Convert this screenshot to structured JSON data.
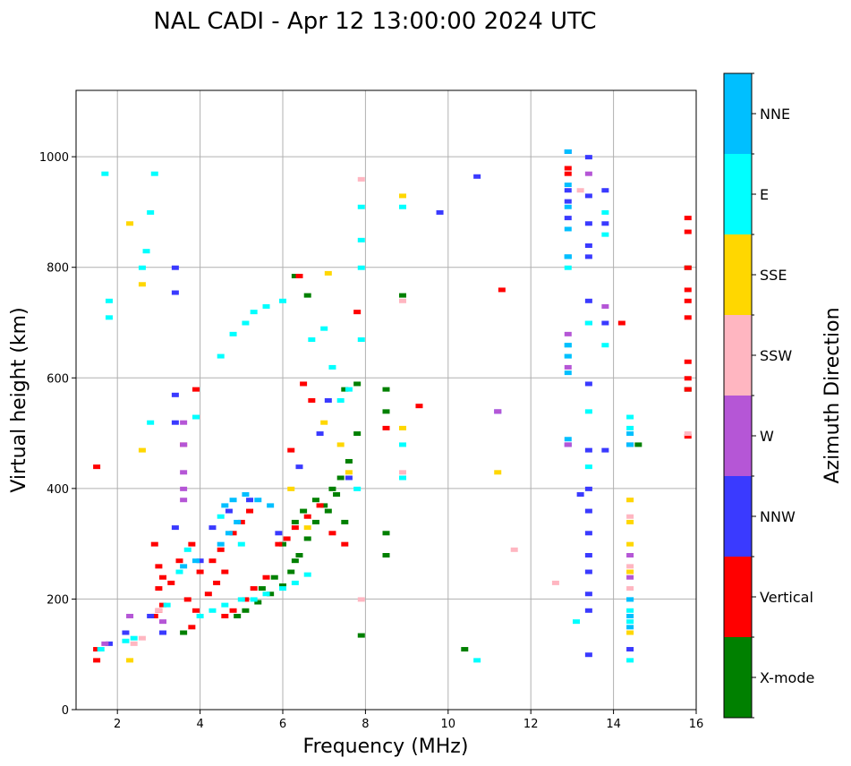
{
  "chart_data": {
    "type": "scatter",
    "title": "NAL CADI - Apr 12 13:00:00 2024 UTC",
    "xlabel": "Frequency (MHz)",
    "ylabel": "Virtual height (km)",
    "xlim": [
      1.0,
      16.0
    ],
    "ylim": [
      0,
      1120
    ],
    "xticks": [
      2,
      4,
      6,
      8,
      10,
      12,
      14,
      16
    ],
    "yticks": [
      0,
      200,
      400,
      600,
      800,
      1000
    ],
    "grid": true,
    "colorbar": {
      "label": "Azimuth Direction",
      "categories": [
        {
          "name": "X-mode",
          "color": "#008000"
        },
        {
          "name": "Vertical",
          "color": "#ff0000"
        },
        {
          "name": "NNW",
          "color": "#3a3aff"
        },
        {
          "name": "W",
          "color": "#b556d6"
        },
        {
          "name": "SSW",
          "color": "#ffb6c1"
        },
        {
          "name": "SSE",
          "color": "#ffd700"
        },
        {
          "name": "E",
          "color": "#00ffff"
        },
        {
          "name": "NNE",
          "color": "#00bfff"
        }
      ]
    },
    "series": [
      {
        "name": "X-mode",
        "points": [
          [
            4.9,
            170
          ],
          [
            5.1,
            180
          ],
          [
            5.4,
            195
          ],
          [
            5.7,
            210
          ],
          [
            6.0,
            225
          ],
          [
            6.2,
            250
          ],
          [
            6.4,
            280
          ],
          [
            6.6,
            310
          ],
          [
            6.8,
            340
          ],
          [
            7.0,
            370
          ],
          [
            7.2,
            400
          ],
          [
            7.4,
            420
          ],
          [
            7.6,
            450
          ],
          [
            7.8,
            500
          ],
          [
            6.3,
            340
          ],
          [
            6.5,
            360
          ],
          [
            6.8,
            380
          ],
          [
            7.1,
            360
          ],
          [
            7.3,
            390
          ],
          [
            7.5,
            340
          ],
          [
            6.0,
            300
          ],
          [
            6.3,
            270
          ],
          [
            5.8,
            240
          ],
          [
            5.5,
            220
          ],
          [
            7.8,
            590
          ],
          [
            7.5,
            580
          ],
          [
            6.6,
            750
          ],
          [
            6.3,
            785
          ],
          [
            8.5,
            580
          ],
          [
            8.5,
            540
          ],
          [
            8.5,
            320
          ],
          [
            8.5,
            280
          ],
          [
            8.9,
            750
          ],
          [
            10.4,
            110
          ],
          [
            14.6,
            480
          ],
          [
            15.8,
            800
          ],
          [
            15.8,
            580
          ],
          [
            7.9,
            135
          ],
          [
            3.6,
            140
          ]
        ]
      },
      {
        "name": "Vertical",
        "points": [
          [
            1.5,
            110
          ],
          [
            1.5,
            90
          ],
          [
            1.5,
            440
          ],
          [
            2.9,
            300
          ],
          [
            3.0,
            260
          ],
          [
            3.1,
            240
          ],
          [
            3.0,
            220
          ],
          [
            3.1,
            190
          ],
          [
            3.3,
            230
          ],
          [
            3.5,
            270
          ],
          [
            3.8,
            300
          ],
          [
            4.0,
            250
          ],
          [
            4.3,
            270
          ],
          [
            4.5,
            290
          ],
          [
            4.8,
            320
          ],
          [
            5.0,
            340
          ],
          [
            5.2,
            360
          ],
          [
            4.2,
            210
          ],
          [
            4.4,
            230
          ],
          [
            4.6,
            250
          ],
          [
            3.7,
            200
          ],
          [
            3.9,
            180
          ],
          [
            3.8,
            150
          ],
          [
            4.6,
            170
          ],
          [
            4.8,
            180
          ],
          [
            5.1,
            200
          ],
          [
            5.3,
            220
          ],
          [
            5.6,
            240
          ],
          [
            5.9,
            300
          ],
          [
            6.1,
            310
          ],
          [
            6.3,
            330
          ],
          [
            6.6,
            350
          ],
          [
            6.9,
            370
          ],
          [
            7.2,
            320
          ],
          [
            7.5,
            300
          ],
          [
            6.2,
            470
          ],
          [
            6.7,
            560
          ],
          [
            6.5,
            590
          ],
          [
            7.8,
            720
          ],
          [
            8.5,
            510
          ],
          [
            9.3,
            550
          ],
          [
            11.3,
            760
          ],
          [
            12.9,
            980
          ],
          [
            12.9,
            970
          ],
          [
            14.2,
            700
          ],
          [
            3.9,
            580
          ],
          [
            3.6,
            480
          ],
          [
            6.4,
            785
          ],
          [
            15.8,
            890
          ],
          [
            15.8,
            865
          ],
          [
            15.8,
            800
          ],
          [
            15.8,
            760
          ],
          [
            15.8,
            740
          ],
          [
            15.8,
            710
          ],
          [
            15.8,
            630
          ],
          [
            15.8,
            600
          ],
          [
            15.8,
            580
          ],
          [
            15.8,
            495
          ],
          [
            3.0,
            180
          ],
          [
            2.9,
            170
          ]
        ]
      },
      {
        "name": "NNW",
        "points": [
          [
            1.8,
            120
          ],
          [
            2.2,
            140
          ],
          [
            2.8,
            170
          ],
          [
            3.1,
            140
          ],
          [
            3.4,
            330
          ],
          [
            3.4,
            520
          ],
          [
            3.4,
            570
          ],
          [
            3.4,
            755
          ],
          [
            3.4,
            800
          ],
          [
            4.0,
            270
          ],
          [
            4.3,
            330
          ],
          [
            4.7,
            360
          ],
          [
            5.2,
            380
          ],
          [
            5.9,
            320
          ],
          [
            6.4,
            440
          ],
          [
            6.9,
            500
          ],
          [
            7.1,
            560
          ],
          [
            7.6,
            420
          ],
          [
            9.8,
            900
          ],
          [
            10.7,
            965
          ],
          [
            11.2,
            540
          ],
          [
            12.9,
            1010
          ],
          [
            12.9,
            940
          ],
          [
            12.9,
            920
          ],
          [
            12.9,
            890
          ],
          [
            12.9,
            820
          ],
          [
            12.9,
            480
          ],
          [
            13.2,
            390
          ],
          [
            13.4,
            1000
          ],
          [
            13.4,
            930
          ],
          [
            13.4,
            880
          ],
          [
            13.4,
            840
          ],
          [
            13.4,
            820
          ],
          [
            13.4,
            740
          ],
          [
            13.4,
            700
          ],
          [
            13.4,
            590
          ],
          [
            13.4,
            470
          ],
          [
            13.4,
            400
          ],
          [
            13.4,
            360
          ],
          [
            13.4,
            320
          ],
          [
            13.4,
            280
          ],
          [
            13.4,
            250
          ],
          [
            13.4,
            210
          ],
          [
            13.4,
            180
          ],
          [
            13.4,
            100
          ],
          [
            13.8,
            940
          ],
          [
            13.8,
            880
          ],
          [
            13.8,
            700
          ],
          [
            13.8,
            470
          ],
          [
            14.4,
            480
          ],
          [
            14.4,
            110
          ]
        ]
      },
      {
        "name": "W",
        "points": [
          [
            1.7,
            120
          ],
          [
            2.3,
            170
          ],
          [
            3.1,
            160
          ],
          [
            3.6,
            380
          ],
          [
            3.6,
            400
          ],
          [
            3.6,
            430
          ],
          [
            3.6,
            480
          ],
          [
            3.6,
            520
          ],
          [
            12.9,
            680
          ],
          [
            12.9,
            620
          ],
          [
            12.9,
            480
          ],
          [
            13.4,
            970
          ],
          [
            13.8,
            730
          ],
          [
            11.2,
            540
          ],
          [
            14.4,
            280
          ],
          [
            14.4,
            240
          ]
        ]
      },
      {
        "name": "SSW",
        "points": [
          [
            2.4,
            120
          ],
          [
            2.6,
            130
          ],
          [
            3.0,
            180
          ],
          [
            7.9,
            200
          ],
          [
            7.9,
            960
          ],
          [
            8.9,
            740
          ],
          [
            8.9,
            430
          ],
          [
            11.6,
            290
          ],
          [
            12.6,
            230
          ],
          [
            13.2,
            940
          ],
          [
            12.9,
            660
          ],
          [
            14.4,
            380
          ],
          [
            14.4,
            350
          ],
          [
            14.4,
            260
          ],
          [
            14.4,
            220
          ],
          [
            15.8,
            500
          ]
        ]
      },
      {
        "name": "SSE",
        "points": [
          [
            2.3,
            90
          ],
          [
            2.3,
            880
          ],
          [
            2.6,
            770
          ],
          [
            2.6,
            470
          ],
          [
            6.2,
            400
          ],
          [
            6.6,
            330
          ],
          [
            7.0,
            520
          ],
          [
            7.1,
            790
          ],
          [
            7.4,
            480
          ],
          [
            7.6,
            430
          ],
          [
            8.9,
            930
          ],
          [
            8.9,
            510
          ],
          [
            11.2,
            430
          ],
          [
            14.4,
            380
          ],
          [
            14.4,
            340
          ],
          [
            14.4,
            300
          ],
          [
            14.4,
            250
          ],
          [
            14.4,
            140
          ]
        ]
      },
      {
        "name": "E",
        "points": [
          [
            1.6,
            110
          ],
          [
            1.7,
            970
          ],
          [
            1.8,
            740
          ],
          [
            1.8,
            710
          ],
          [
            2.2,
            125
          ],
          [
            2.4,
            130
          ],
          [
            2.6,
            800
          ],
          [
            2.7,
            830
          ],
          [
            2.8,
            900
          ],
          [
            2.9,
            970
          ],
          [
            2.8,
            520
          ],
          [
            3.2,
            190
          ],
          [
            3.5,
            250
          ],
          [
            3.7,
            290
          ],
          [
            3.9,
            530
          ],
          [
            4.0,
            170
          ],
          [
            4.3,
            180
          ],
          [
            4.6,
            190
          ],
          [
            5.0,
            200
          ],
          [
            5.3,
            200
          ],
          [
            5.6,
            210
          ],
          [
            6.0,
            220
          ],
          [
            6.3,
            230
          ],
          [
            6.6,
            245
          ],
          [
            4.5,
            640
          ],
          [
            4.8,
            680
          ],
          [
            5.1,
            700
          ],
          [
            5.3,
            720
          ],
          [
            5.6,
            730
          ],
          [
            6.0,
            740
          ],
          [
            6.7,
            670
          ],
          [
            7.0,
            690
          ],
          [
            7.2,
            620
          ],
          [
            7.4,
            560
          ],
          [
            7.6,
            580
          ],
          [
            7.9,
            670
          ],
          [
            7.9,
            800
          ],
          [
            7.9,
            850
          ],
          [
            7.9,
            910
          ],
          [
            8.9,
            910
          ],
          [
            8.9,
            480
          ],
          [
            8.9,
            420
          ],
          [
            10.7,
            90
          ],
          [
            12.9,
            820
          ],
          [
            12.9,
            800
          ],
          [
            12.9,
            660
          ],
          [
            12.9,
            640
          ],
          [
            13.1,
            160
          ],
          [
            13.4,
            700
          ],
          [
            13.4,
            540
          ],
          [
            13.4,
            440
          ],
          [
            13.8,
            900
          ],
          [
            13.8,
            860
          ],
          [
            13.8,
            660
          ],
          [
            14.4,
            530
          ],
          [
            14.4,
            510
          ],
          [
            14.4,
            200
          ],
          [
            14.4,
            180
          ],
          [
            14.4,
            160
          ],
          [
            14.4,
            90
          ],
          [
            4.5,
            350
          ],
          [
            5.0,
            300
          ],
          [
            7.8,
            400
          ]
        ]
      },
      {
        "name": "NNE",
        "points": [
          [
            4.6,
            370
          ],
          [
            4.8,
            380
          ],
          [
            5.1,
            390
          ],
          [
            5.4,
            380
          ],
          [
            5.7,
            370
          ],
          [
            4.5,
            300
          ],
          [
            4.7,
            320
          ],
          [
            4.9,
            340
          ],
          [
            3.6,
            260
          ],
          [
            3.9,
            270
          ],
          [
            12.9,
            1010
          ],
          [
            12.9,
            950
          ],
          [
            12.9,
            910
          ],
          [
            12.9,
            870
          ],
          [
            12.9,
            820
          ],
          [
            12.9,
            660
          ],
          [
            12.9,
            640
          ],
          [
            12.9,
            610
          ],
          [
            12.9,
            490
          ],
          [
            14.4,
            500
          ],
          [
            14.4,
            480
          ],
          [
            14.4,
            200
          ],
          [
            14.4,
            170
          ],
          [
            14.4,
            150
          ]
        ]
      }
    ]
  }
}
